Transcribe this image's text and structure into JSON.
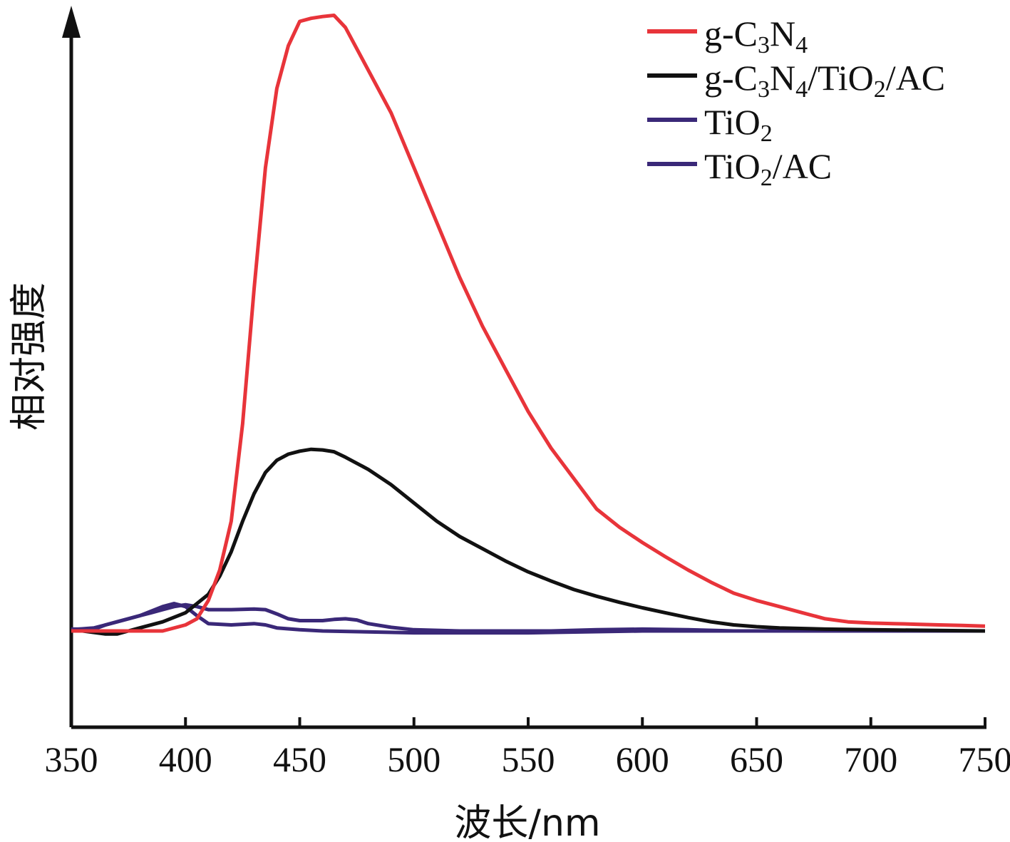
{
  "chart_data": {
    "type": "line",
    "title": "",
    "xlabel": "波长/nm",
    "ylabel": "相对强度",
    "xlim": [
      350,
      750
    ],
    "ylim": [
      -0.12,
      1.0
    ],
    "x_ticks": [
      "350",
      "400",
      "450",
      "500",
      "550",
      "600",
      "650",
      "700",
      "750"
    ],
    "y_ticks": [],
    "grid": false,
    "legend_position": "top-right",
    "series": [
      {
        "name": "g-C3N4",
        "legend": {
          "base": "g-C",
          "s1": "3",
          "mid": "N",
          "s2": "4",
          "tail": ""
        },
        "color": "#e8343a",
        "points": [
          [
            350,
            0.0
          ],
          [
            360,
            0.0
          ],
          [
            370,
            0.0
          ],
          [
            380,
            0.0
          ],
          [
            390,
            0.0
          ],
          [
            400,
            0.01
          ],
          [
            405,
            0.02
          ],
          [
            410,
            0.05
          ],
          [
            415,
            0.1
          ],
          [
            420,
            0.18
          ],
          [
            425,
            0.34
          ],
          [
            430,
            0.56
          ],
          [
            435,
            0.76
          ],
          [
            440,
            0.89
          ],
          [
            445,
            0.96
          ],
          [
            450,
            1.0
          ],
          [
            455,
            1.005
          ],
          [
            460,
            1.008
          ],
          [
            465,
            1.01
          ],
          [
            470,
            0.99
          ],
          [
            480,
            0.92
          ],
          [
            490,
            0.85
          ],
          [
            500,
            0.76
          ],
          [
            510,
            0.67
          ],
          [
            520,
            0.58
          ],
          [
            530,
            0.5
          ],
          [
            540,
            0.43
          ],
          [
            550,
            0.36
          ],
          [
            560,
            0.3
          ],
          [
            570,
            0.25
          ],
          [
            580,
            0.2
          ],
          [
            590,
            0.17
          ],
          [
            600,
            0.145
          ],
          [
            610,
            0.122
          ],
          [
            620,
            0.1
          ],
          [
            630,
            0.08
          ],
          [
            640,
            0.062
          ],
          [
            650,
            0.05
          ],
          [
            660,
            0.04
          ],
          [
            670,
            0.03
          ],
          [
            680,
            0.02
          ],
          [
            690,
            0.015
          ],
          [
            700,
            0.013
          ],
          [
            710,
            0.012
          ],
          [
            720,
            0.011
          ],
          [
            730,
            0.01
          ],
          [
            740,
            0.009
          ],
          [
            750,
            0.008
          ]
        ]
      },
      {
        "name": "g-C3N4/TiO2/AC",
        "legend": {
          "base": "g-C",
          "s1": "3",
          "mid": "N",
          "s2": "4",
          "tail": "/TiO",
          "s3": "2",
          "tail2": "/AC"
        },
        "color": "#111111",
        "points": [
          [
            355,
            0.0
          ],
          [
            365,
            -0.005
          ],
          [
            370,
            -0.005
          ],
          [
            375,
            0.0
          ],
          [
            380,
            0.005
          ],
          [
            390,
            0.015
          ],
          [
            400,
            0.03
          ],
          [
            410,
            0.06
          ],
          [
            415,
            0.09
          ],
          [
            420,
            0.13
          ],
          [
            425,
            0.18
          ],
          [
            430,
            0.225
          ],
          [
            435,
            0.26
          ],
          [
            440,
            0.28
          ],
          [
            445,
            0.29
          ],
          [
            450,
            0.295
          ],
          [
            455,
            0.298
          ],
          [
            460,
            0.297
          ],
          [
            465,
            0.294
          ],
          [
            470,
            0.285
          ],
          [
            480,
            0.265
          ],
          [
            490,
            0.24
          ],
          [
            500,
            0.21
          ],
          [
            510,
            0.18
          ],
          [
            520,
            0.155
          ],
          [
            530,
            0.135
          ],
          [
            540,
            0.115
          ],
          [
            550,
            0.097
          ],
          [
            560,
            0.082
          ],
          [
            570,
            0.068
          ],
          [
            580,
            0.057
          ],
          [
            590,
            0.047
          ],
          [
            600,
            0.038
          ],
          [
            610,
            0.03
          ],
          [
            620,
            0.022
          ],
          [
            630,
            0.015
          ],
          [
            640,
            0.01
          ],
          [
            650,
            0.007
          ],
          [
            660,
            0.005
          ],
          [
            680,
            0.003
          ],
          [
            700,
            0.002
          ],
          [
            750,
            0.0
          ]
        ]
      },
      {
        "name": "TiO2",
        "legend": {
          "base": "TiO",
          "s1": "2",
          "mid": "",
          "s2": "",
          "tail": ""
        },
        "color": "#3a2878",
        "points": [
          [
            350,
            0.003
          ],
          [
            360,
            0.003
          ],
          [
            365,
            0.01
          ],
          [
            370,
            0.015
          ],
          [
            375,
            0.02
          ],
          [
            380,
            0.025
          ],
          [
            385,
            0.03
          ],
          [
            390,
            0.035
          ],
          [
            395,
            0.04
          ],
          [
            400,
            0.043
          ],
          [
            405,
            0.04
          ],
          [
            410,
            0.035
          ],
          [
            415,
            0.035
          ],
          [
            420,
            0.035
          ],
          [
            430,
            0.036
          ],
          [
            435,
            0.035
          ],
          [
            440,
            0.028
          ],
          [
            445,
            0.02
          ],
          [
            450,
            0.017
          ],
          [
            460,
            0.017
          ],
          [
            465,
            0.019
          ],
          [
            470,
            0.02
          ],
          [
            475,
            0.018
          ],
          [
            480,
            0.012
          ],
          [
            490,
            0.006
          ],
          [
            500,
            0.002
          ],
          [
            520,
            0.0
          ],
          [
            560,
            0.0
          ],
          [
            580,
            0.002
          ],
          [
            600,
            0.003
          ],
          [
            620,
            0.002
          ],
          [
            640,
            0.0
          ],
          [
            680,
            0.0
          ],
          [
            750,
            0.0
          ]
        ]
      },
      {
        "name": "TiO2/AC",
        "legend": {
          "base": "TiO",
          "s1": "2",
          "mid": "",
          "s2": "",
          "tail": "/AC"
        },
        "color": "#3a2878",
        "points": [
          [
            350,
            0.002
          ],
          [
            360,
            0.005
          ],
          [
            365,
            0.01
          ],
          [
            370,
            0.015
          ],
          [
            380,
            0.025
          ],
          [
            390,
            0.04
          ],
          [
            395,
            0.045
          ],
          [
            400,
            0.04
          ],
          [
            405,
            0.025
          ],
          [
            410,
            0.012
          ],
          [
            420,
            0.01
          ],
          [
            430,
            0.012
          ],
          [
            435,
            0.01
          ],
          [
            440,
            0.005
          ],
          [
            450,
            0.002
          ],
          [
            460,
            0.0
          ],
          [
            500,
            -0.003
          ],
          [
            550,
            -0.003
          ],
          [
            600,
            0.0
          ],
          [
            700,
            0.0
          ],
          [
            750,
            0.0
          ]
        ]
      }
    ]
  }
}
